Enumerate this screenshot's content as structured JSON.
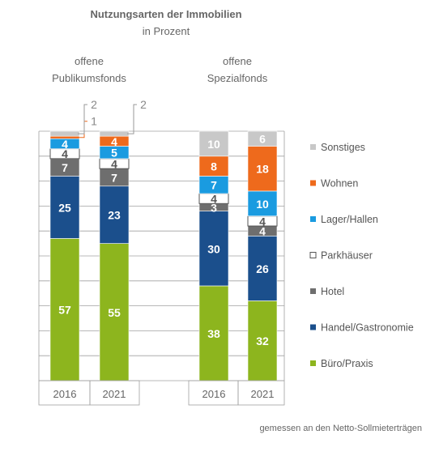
{
  "chart_data": {
    "type": "bar",
    "stacked": true,
    "title": "Nutzungsarten der Immobilien",
    "subtitle": "in Prozent",
    "groups": [
      {
        "label": "offene\nPublikumsfonds",
        "categories": [
          "2016",
          "2021"
        ]
      },
      {
        "label": "offene\nSpezialfonds",
        "categories": [
          "2016",
          "2021"
        ]
      }
    ],
    "categories": [
      "2016",
      "2021",
      "2016",
      "2021"
    ],
    "ylim": [
      0,
      100
    ],
    "grid": true,
    "legend_position": "right",
    "series": [
      {
        "name": "Büro/Praxis",
        "color": "#8db51e",
        "text_color": "#ffffff",
        "values": [
          57,
          55,
          38,
          32
        ]
      },
      {
        "name": "Handel/Gastronomie",
        "color": "#1b4f8c",
        "text_color": "#ffffff",
        "values": [
          25,
          23,
          30,
          26
        ]
      },
      {
        "name": "Hotel",
        "color": "#6e6e6e",
        "text_color": "#ffffff",
        "values": [
          7,
          7,
          3,
          4
        ]
      },
      {
        "name": "Parkhäuser",
        "color": "#ffffff",
        "text_color": "#555555",
        "values": [
          4,
          4,
          4,
          4
        ]
      },
      {
        "name": "Lager/Hallen",
        "color": "#1a9be0",
        "text_color": "#ffffff",
        "values": [
          4,
          5,
          7,
          10
        ]
      },
      {
        "name": "Wohnen",
        "color": "#ee6a1c",
        "text_color": "#ffffff",
        "values": [
          1,
          4,
          8,
          18
        ]
      },
      {
        "name": "Sonstiges",
        "color": "#c8c8c8",
        "text_color": "#ffffff",
        "values": [
          2,
          2,
          10,
          6
        ]
      }
    ],
    "note": "gemessen an den Netto-Sollmieterträgen"
  }
}
